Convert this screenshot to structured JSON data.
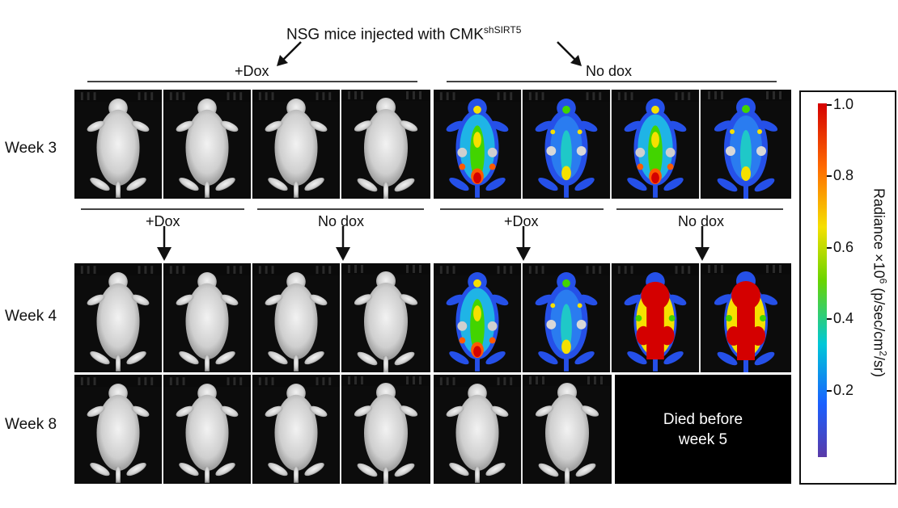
{
  "title": {
    "text": "NSG mice injected with CMK",
    "superscript": "shSIRT5"
  },
  "group_labels_top": {
    "dox": "+Dox",
    "nodox": "No dox"
  },
  "group_labels_mid": [
    "+Dox",
    "No dox",
    "+Dox",
    "No dox"
  ],
  "row_labels": [
    "Week 3",
    "Week 4",
    "Week 8"
  ],
  "died_text_line1": "Died before",
  "died_text_line2": "week 5",
  "colorbar": {
    "label": "Radiance ×10",
    "label_exp": "6",
    "label_unit": " (p/sec/cm",
    "label_unit_exp": "2",
    "label_end": "/sr)",
    "ticks": [
      "1.0",
      "0.8",
      "0.6",
      "0.4",
      "0.2"
    ],
    "colors": [
      "#d40000",
      "#ff6a00",
      "#f5e000",
      "#6ad400",
      "#00c8d8",
      "#1a60ff",
      "#5a3aa8"
    ]
  }
}
